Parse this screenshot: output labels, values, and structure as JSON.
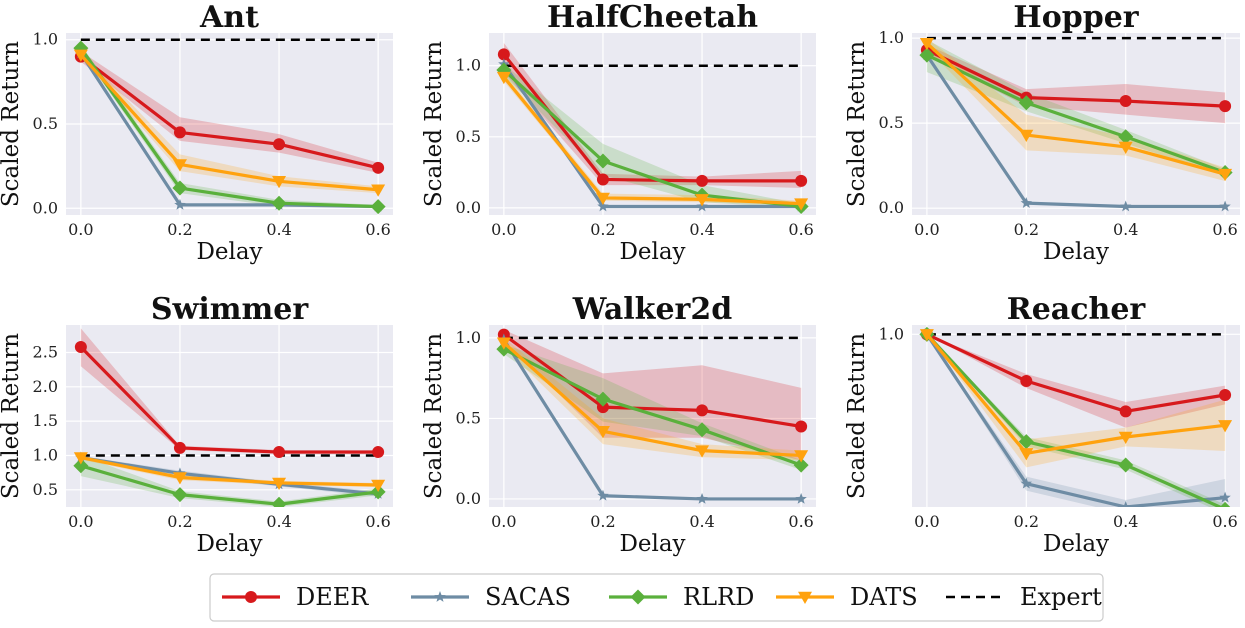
{
  "colors": {
    "DEER": "#d7191c",
    "SACAS": "#6e8ca4",
    "RLRD": "#5ab03c",
    "DATS": "#ffa20e",
    "Expert": "#000000",
    "panel_bg": "#eaeaf2",
    "grid": "#ffffff"
  },
  "legend": {
    "entries": [
      {
        "name": "DEER",
        "label": "DEER",
        "marker": "circle"
      },
      {
        "name": "SACAS",
        "label": "SACAS",
        "marker": "star"
      },
      {
        "name": "RLRD",
        "label": "RLRD",
        "marker": "diamond"
      },
      {
        "name": "DATS",
        "label": "DATS",
        "marker": "triangle-down"
      },
      {
        "name": "Expert",
        "label": "Expert",
        "marker": "dashed"
      }
    ]
  },
  "chart_data": [
    {
      "type": "line",
      "title": "Ant",
      "xlabel": "Delay",
      "ylabel": "Scaled Return",
      "x": [
        0.0,
        0.2,
        0.4,
        0.6
      ],
      "xlim": [
        -0.03,
        0.63
      ],
      "ylim": [
        -0.04,
        1.04
      ],
      "xticks": [
        "0.0",
        "0.2",
        "0.4",
        "0.6"
      ],
      "yticks": [
        0.0,
        0.5,
        1.0
      ],
      "yticklabels": [
        "0.0",
        "0.5",
        "1.0"
      ],
      "expert": 1.0,
      "series": [
        {
          "name": "DEER",
          "values": [
            0.9,
            0.45,
            0.38,
            0.24
          ],
          "band": [
            [
              0.87,
              0.93
            ],
            [
              0.4,
              0.54
            ],
            [
              0.33,
              0.44
            ],
            [
              0.21,
              0.27
            ]
          ]
        },
        {
          "name": "SACAS",
          "values": [
            0.92,
            0.02,
            0.02,
            0.01
          ]
        },
        {
          "name": "RLRD",
          "values": [
            0.95,
            0.12,
            0.03,
            0.01
          ],
          "band": [
            [
              0.93,
              0.97
            ],
            [
              0.09,
              0.15
            ],
            [
              0.01,
              0.05
            ],
            [
              0.0,
              0.02
            ]
          ]
        },
        {
          "name": "DATS",
          "values": [
            0.91,
            0.26,
            0.16,
            0.11
          ],
          "band": [
            [
              0.89,
              0.93
            ],
            [
              0.22,
              0.32
            ],
            [
              0.13,
              0.19
            ],
            [
              0.09,
              0.13
            ]
          ]
        }
      ]
    },
    {
      "type": "line",
      "title": "HalfCheetah",
      "xlabel": "Delay",
      "ylabel": "Scaled Return",
      "x": [
        0.0,
        0.2,
        0.4,
        0.6
      ],
      "xlim": [
        -0.03,
        0.63
      ],
      "ylim": [
        -0.05,
        1.23
      ],
      "xticks": [
        "0.0",
        "0.2",
        "0.4",
        "0.6"
      ],
      "yticks": [
        0.0,
        0.5,
        1.0
      ],
      "yticklabels": [
        "0.0",
        "0.5",
        "1.0"
      ],
      "expert": 1.0,
      "series": [
        {
          "name": "DEER",
          "values": [
            1.08,
            0.2,
            0.19,
            0.19
          ],
          "band": [
            [
              0.95,
              1.16
            ],
            [
              0.16,
              0.24
            ],
            [
              0.16,
              0.22
            ],
            [
              0.14,
              0.26
            ]
          ]
        },
        {
          "name": "SACAS",
          "values": [
            1.01,
            0.01,
            0.01,
            0.01
          ]
        },
        {
          "name": "RLRD",
          "values": [
            0.97,
            0.33,
            0.09,
            0.01
          ],
          "band": [
            [
              0.93,
              1.01
            ],
            [
              0.23,
              0.45
            ],
            [
              0.04,
              0.16
            ],
            [
              0.0,
              0.03
            ]
          ]
        },
        {
          "name": "DATS",
          "values": [
            0.92,
            0.07,
            0.06,
            0.03
          ],
          "band": [
            [
              0.89,
              0.95
            ],
            [
              0.05,
              0.1
            ],
            [
              0.04,
              0.09
            ],
            [
              0.02,
              0.05
            ]
          ]
        }
      ]
    },
    {
      "type": "line",
      "title": "Hopper",
      "xlabel": "Delay",
      "ylabel": "Scaled Return",
      "x": [
        0.0,
        0.2,
        0.4,
        0.6
      ],
      "xlim": [
        -0.03,
        0.63
      ],
      "ylim": [
        -0.04,
        1.03
      ],
      "xticks": [
        "0.0",
        "0.2",
        "0.4",
        "0.6"
      ],
      "yticks": [
        0.0,
        0.5,
        1.0
      ],
      "yticklabels": [
        "0.0",
        "0.5",
        "1.0"
      ],
      "expert": 1.0,
      "series": [
        {
          "name": "DEER",
          "values": [
            0.93,
            0.65,
            0.63,
            0.6
          ],
          "band": [
            [
              0.9,
              0.96
            ],
            [
              0.6,
              0.7
            ],
            [
              0.55,
              0.73
            ],
            [
              0.5,
              0.68
            ]
          ]
        },
        {
          "name": "SACAS",
          "values": [
            0.9,
            0.03,
            0.01,
            0.01
          ]
        },
        {
          "name": "RLRD",
          "values": [
            0.9,
            0.62,
            0.42,
            0.21
          ],
          "band": [
            [
              0.8,
              0.99
            ],
            [
              0.57,
              0.68
            ],
            [
              0.38,
              0.46
            ],
            [
              0.19,
              0.23
            ]
          ]
        },
        {
          "name": "DATS",
          "values": [
            0.97,
            0.43,
            0.36,
            0.2
          ],
          "band": [
            [
              0.94,
              1.0
            ],
            [
              0.34,
              0.55
            ],
            [
              0.31,
              0.42
            ],
            [
              0.16,
              0.24
            ]
          ]
        }
      ]
    },
    {
      "type": "line",
      "title": "Swimmer",
      "xlabel": "Delay",
      "ylabel": "Scaled Return",
      "x": [
        0.0,
        0.2,
        0.4,
        0.6
      ],
      "xlim": [
        -0.03,
        0.63
      ],
      "ylim": [
        0.25,
        2.9
      ],
      "xticks": [
        "0.0",
        "0.2",
        "0.4",
        "0.6"
      ],
      "yticks": [
        0.5,
        1.0,
        1.5,
        2.0,
        2.5
      ],
      "yticklabels": [
        "0.5",
        "1.0",
        "1.5",
        "2.0",
        "2.5"
      ],
      "expert": 1.0,
      "series": [
        {
          "name": "DEER",
          "values": [
            2.58,
            1.11,
            1.05,
            1.05
          ],
          "band": [
            [
              2.3,
              2.85
            ],
            [
              1.08,
              1.14
            ],
            [
              1.02,
              1.08
            ],
            [
              1.02,
              1.08
            ]
          ]
        },
        {
          "name": "SACAS",
          "values": [
            0.97,
            0.74,
            0.58,
            0.44
          ],
          "band": [
            [
              0.95,
              0.99
            ],
            [
              0.7,
              0.78
            ],
            [
              0.55,
              0.61
            ],
            [
              0.4,
              0.48
            ]
          ]
        },
        {
          "name": "RLRD",
          "values": [
            0.85,
            0.43,
            0.29,
            0.47
          ],
          "band": [
            [
              0.7,
              1.0
            ],
            [
              0.38,
              0.48
            ],
            [
              0.25,
              0.33
            ],
            [
              0.42,
              0.52
            ]
          ]
        },
        {
          "name": "DATS",
          "values": [
            0.97,
            0.68,
            0.6,
            0.57
          ],
          "band": [
            [
              0.94,
              1.0
            ],
            [
              0.64,
              0.72
            ],
            [
              0.57,
              0.63
            ],
            [
              0.54,
              0.6
            ]
          ]
        }
      ]
    },
    {
      "type": "line",
      "title": "Walker2d",
      "xlabel": "Delay",
      "ylabel": "Scaled Return",
      "x": [
        0.0,
        0.2,
        0.4,
        0.6
      ],
      "xlim": [
        -0.03,
        0.63
      ],
      "ylim": [
        -0.05,
        1.08
      ],
      "xticks": [
        "0.0",
        "0.2",
        "0.4",
        "0.6"
      ],
      "yticks": [
        0.0,
        0.5,
        1.0
      ],
      "yticklabels": [
        "0.0",
        "0.5",
        "1.0"
      ],
      "expert": 1.0,
      "series": [
        {
          "name": "DEER",
          "values": [
            1.02,
            0.57,
            0.55,
            0.45
          ],
          "band": [
            [
              0.99,
              1.05
            ],
            [
              0.38,
              0.78
            ],
            [
              0.38,
              0.83
            ],
            [
              0.24,
              0.69
            ]
          ]
        },
        {
          "name": "SACAS",
          "values": [
            0.99,
            0.02,
            0.0,
            0.0
          ]
        },
        {
          "name": "RLRD",
          "values": [
            0.93,
            0.62,
            0.43,
            0.21
          ],
          "band": [
            [
              0.9,
              0.96
            ],
            [
              0.48,
              0.75
            ],
            [
              0.39,
              0.47
            ],
            [
              0.18,
              0.24
            ]
          ]
        },
        {
          "name": "DATS",
          "values": [
            0.97,
            0.42,
            0.3,
            0.27
          ],
          "band": [
            [
              0.94,
              1.0
            ],
            [
              0.34,
              0.5
            ],
            [
              0.26,
              0.34
            ],
            [
              0.24,
              0.3
            ]
          ]
        }
      ]
    },
    {
      "type": "line",
      "title": "Reacher",
      "xlabel": "Delay",
      "ylabel": "Scaled Return",
      "x": [
        0.0,
        0.2,
        0.4,
        0.6
      ],
      "xlim": [
        -0.03,
        0.63
      ],
      "ylim": [
        0.26,
        1.04
      ],
      "xticks": [
        "0.0",
        "0.2",
        "0.4",
        "0.6"
      ],
      "yticks": [
        1.0
      ],
      "yticklabels": [
        "1.0"
      ],
      "expert": 1.0,
      "series": [
        {
          "name": "DEER",
          "values": [
            1.0,
            0.8,
            0.67,
            0.74
          ],
          "band": [
            [
              1.0,
              1.0
            ],
            [
              0.77,
              0.83
            ],
            [
              0.6,
              0.71
            ],
            [
              0.7,
              0.78
            ]
          ]
        },
        {
          "name": "SACAS",
          "values": [
            1.0,
            0.36,
            0.26,
            0.3
          ],
          "band": [
            [
              1.0,
              1.0
            ],
            [
              0.33,
              0.39
            ],
            [
              0.23,
              0.29
            ],
            [
              0.25,
              0.38
            ]
          ]
        },
        {
          "name": "RLRD",
          "values": [
            1.0,
            0.54,
            0.44,
            0.25
          ],
          "band": [
            [
              1.0,
              1.0
            ],
            [
              0.52,
              0.56
            ],
            [
              0.42,
              0.46
            ],
            [
              0.23,
              0.27
            ]
          ]
        },
        {
          "name": "DATS",
          "values": [
            1.0,
            0.49,
            0.56,
            0.61
          ],
          "band": [
            [
              1.0,
              1.0
            ],
            [
              0.43,
              0.55
            ],
            [
              0.52,
              0.6
            ],
            [
              0.5,
              0.72
            ]
          ]
        }
      ]
    }
  ]
}
